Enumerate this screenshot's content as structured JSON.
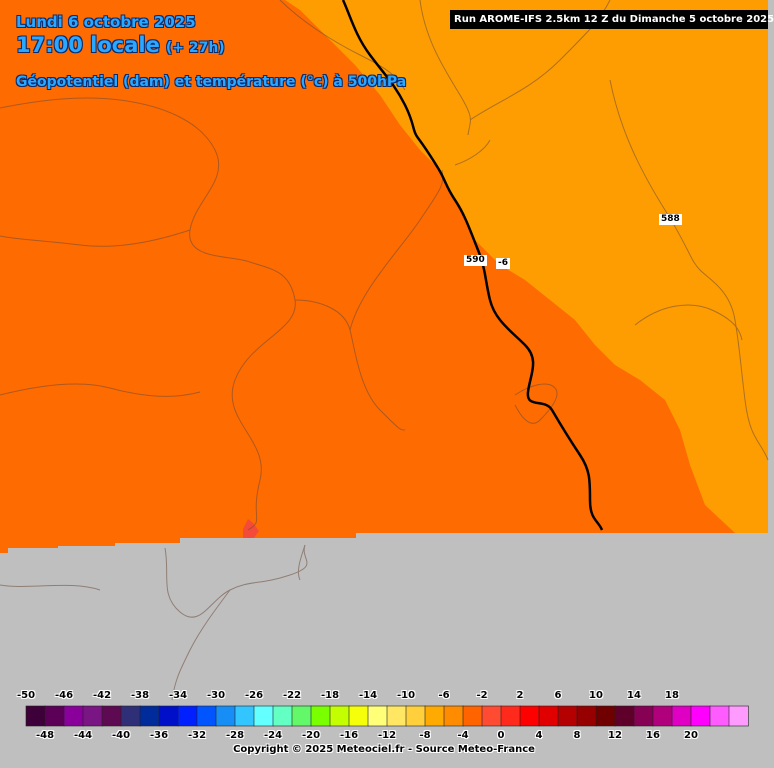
{
  "header": {
    "date": "Lundi 6 octobre 2025",
    "time": "17:00 locale",
    "lead": "(+ 27h)",
    "field": "Géopotentiel (dam) et température (°c) à 500hPa",
    "run": "Run AROME-IFS 2.5km 12 Z du Dimanche 5 octobre 2025"
  },
  "map": {
    "region_colors": {
      "temp_minus_6_zone": "#fe6b01",
      "temp_minus_4_zone": "#fe9d01",
      "no_data": "#bfbfbf",
      "small_warm_spot": "#f44a3a"
    },
    "isohypse_labels": [
      "590",
      "588"
    ],
    "isotherm_labels": [
      "-6"
    ]
  },
  "legend": {
    "colors": [
      "#3d0038",
      "#5c0057",
      "#8a009a",
      "#7a1584",
      "#5e0a52",
      "#2e2f76",
      "#002b9b",
      "#0010c9",
      "#0020ff",
      "#0055ff",
      "#168ef5",
      "#33c5ff",
      "#64ffff",
      "#64ffc2",
      "#63f76a",
      "#79ff00",
      "#c3ff00",
      "#f5ff0a",
      "#ffff78",
      "#ffe764",
      "#ffd03c",
      "#ffaa00",
      "#ff8c00",
      "#ff6400",
      "#ff4b32",
      "#ff2a1c",
      "#ff0000",
      "#e10000",
      "#b40000",
      "#960000",
      "#700000",
      "#5e0029",
      "#860054",
      "#b1007c",
      "#df00c3",
      "#ff00ff",
      "#ff5cff",
      "#ff9aff"
    ],
    "top_ticks": [
      "-50",
      "-46",
      "-42",
      "-38",
      "-34",
      "-30",
      "-26",
      "-22",
      "-18",
      "-14",
      "-10",
      "-6",
      "-2",
      "2",
      "6",
      "10",
      "14",
      "18"
    ],
    "bottom_ticks": [
      "-48",
      "-44",
      "-40",
      "-36",
      "-32",
      "-28",
      "-24",
      "-20",
      "-16",
      "-12",
      "-8",
      "-4",
      "0",
      "4",
      "8",
      "12",
      "16",
      "20"
    ]
  },
  "footer": {
    "copyright": "Copyright © 2025 Meteociel.fr - Source Meteo-France"
  }
}
